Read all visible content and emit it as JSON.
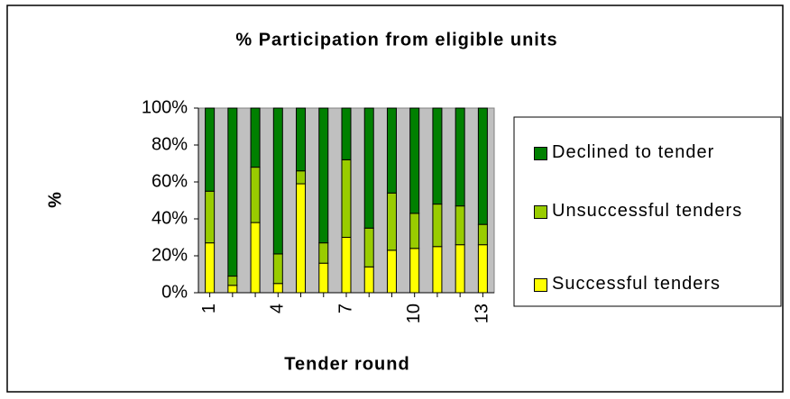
{
  "chart_data": {
    "type": "stacked_bar",
    "title": "% Participation from eligible units",
    "xlabel": "Tender round",
    "ylabel": "%",
    "categories": [
      "1",
      null,
      null,
      "4",
      null,
      null,
      "7",
      null,
      null,
      "10",
      null,
      null,
      "13"
    ],
    "series": [
      {
        "name": "Successful tenders",
        "color": "#ffff00",
        "values": [
          27,
          4,
          38,
          5,
          59,
          16,
          30,
          14,
          23,
          24,
          25,
          26,
          26
        ]
      },
      {
        "name": "Unsuccessful tenders",
        "color": "#99cc00",
        "values": [
          28,
          5,
          30,
          16,
          7,
          11,
          42,
          21,
          31,
          19,
          23,
          21,
          11
        ]
      },
      {
        "name": "Declined to tender",
        "color": "#008000",
        "values": [
          45,
          91,
          32,
          79,
          34,
          73,
          28,
          65,
          46,
          57,
          52,
          53,
          63
        ]
      }
    ],
    "ylim": [
      0,
      100
    ],
    "yticks": [
      {
        "value": 0,
        "label": "0%"
      },
      {
        "value": 20,
        "label": "20%"
      },
      {
        "value": 40,
        "label": "40%"
      },
      {
        "value": 60,
        "label": "60%"
      },
      {
        "value": 80,
        "label": "80%"
      },
      {
        "value": 100,
        "label": "100%"
      }
    ],
    "legend": "right"
  }
}
